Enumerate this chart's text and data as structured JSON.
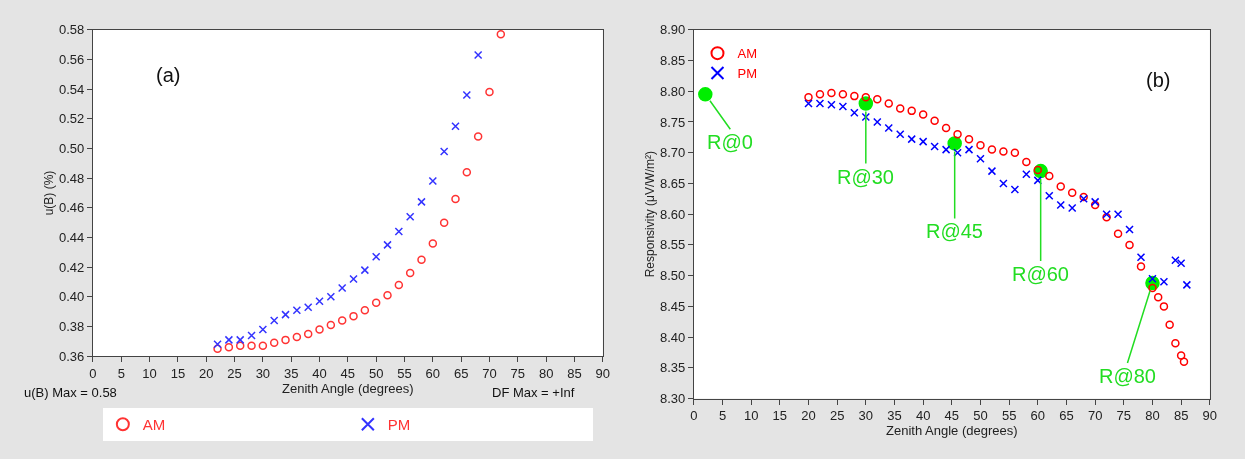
{
  "chart_data": [
    {
      "type": "scatter",
      "xlabel": "Zenith Angle (degrees)",
      "ylabel": "u(B) (%)",
      "annotations": [
        "(a)",
        "u(B) Max = 0.58",
        "DF Max = +Inf"
      ],
      "series": [
        {
          "name": "AM",
          "color": "#ff3333",
          "marker": "circle",
          "x": [
            22,
            24,
            26,
            28,
            30,
            32,
            34,
            36,
            38,
            40,
            42,
            44,
            46,
            48,
            50,
            52,
            54,
            56,
            58,
            60,
            62,
            64,
            66,
            68,
            70,
            72
          ],
          "values": [
            0.365,
            0.366,
            0.367,
            0.367,
            0.367,
            0.369,
            0.371,
            0.373,
            0.375,
            0.378,
            0.381,
            0.384,
            0.387,
            0.391,
            0.396,
            0.401,
            0.408,
            0.416,
            0.425,
            0.436,
            0.45,
            0.466,
            0.484,
            0.508,
            0.538,
            0.577
          ]
        },
        {
          "name": "PM",
          "color": "#3333ff",
          "marker": "cross",
          "x": [
            22,
            24,
            26,
            28,
            30,
            32,
            34,
            36,
            38,
            40,
            42,
            44,
            46,
            48,
            50,
            52,
            54,
            56,
            58,
            60,
            62,
            64,
            66,
            68
          ],
          "values": [
            0.368,
            0.371,
            0.371,
            0.374,
            0.378,
            0.384,
            0.388,
            0.391,
            0.393,
            0.397,
            0.4,
            0.406,
            0.412,
            0.418,
            0.427,
            0.435,
            0.444,
            0.454,
            0.464,
            0.478,
            0.498,
            0.515,
            0.536,
            0.563
          ]
        }
      ],
      "xlim": [
        0,
        90
      ],
      "xticks": [
        0,
        5,
        10,
        15,
        20,
        25,
        30,
        35,
        40,
        45,
        50,
        55,
        60,
        65,
        70,
        75,
        80,
        85,
        90
      ],
      "ylim": [
        0.36,
        0.58
      ],
      "yticks": [
        0.36,
        0.38,
        {
          "value": 0.4,
          "label": "0.40"
        },
        0.42,
        0.44,
        0.46,
        0.48,
        {
          "value": 0.5,
          "label": "0.50"
        },
        0.52,
        0.54,
        0.56,
        0.58
      ],
      "grid": false,
      "legend": "bottom"
    },
    {
      "type": "scatter",
      "xlabel": "Zenith Angle (degrees)",
      "ylabel": "Responsivity (μV/W/m²)",
      "annotations": [
        "(b)",
        {
          "text": "R@0",
          "x": 2,
          "y": 8.795
        },
        {
          "text": "R@30",
          "x": 30,
          "y": 8.78
        },
        {
          "text": "R@45",
          "x": 45.5,
          "y": 8.715
        },
        {
          "text": "R@60",
          "x": 60.5,
          "y": 8.67
        },
        {
          "text": "R@80",
          "x": 80,
          "y": 8.488
        }
      ],
      "series": [
        {
          "color": "#00ee00",
          "marker": "circle",
          "x": [
            2,
            30,
            45.5,
            60.5,
            80
          ],
          "values": [
            8.795,
            8.78,
            8.715,
            8.67,
            8.488
          ]
        },
        {
          "name": "AM",
          "color": "#ff0000",
          "marker": "circle",
          "x": [
            20,
            22,
            24,
            26,
            28,
            30,
            32,
            34,
            36,
            38,
            40,
            42,
            44,
            46,
            48,
            50,
            52,
            54,
            56,
            58,
            60,
            62,
            64,
            66,
            68,
            70,
            72,
            74,
            76,
            78,
            80,
            81,
            82,
            83,
            84,
            85,
            85.5
          ],
          "values": [
            8.79,
            8.795,
            8.797,
            8.795,
            8.792,
            8.79,
            8.787,
            8.78,
            8.772,
            8.768,
            8.762,
            8.752,
            8.74,
            8.73,
            8.722,
            8.712,
            8.705,
            8.702,
            8.7,
            8.685,
            8.672,
            8.662,
            8.645,
            8.635,
            8.628,
            8.615,
            8.595,
            8.568,
            8.55,
            8.515,
            8.48,
            8.465,
            8.45,
            8.42,
            8.39,
            8.37,
            8.36
          ]
        },
        {
          "name": "PM",
          "color": "#0000ff",
          "marker": "cross",
          "x": [
            20,
            22,
            24,
            26,
            28,
            30,
            32,
            34,
            36,
            38,
            40,
            42,
            44,
            46,
            48,
            50,
            52,
            54,
            56,
            58,
            60,
            62,
            64,
            66,
            68,
            70,
            72,
            74,
            76,
            78,
            80,
            82,
            84,
            85,
            86
          ],
          "values": [
            8.78,
            8.78,
            8.778,
            8.775,
            8.765,
            8.758,
            8.75,
            8.74,
            8.73,
            8.722,
            8.718,
            8.71,
            8.705,
            8.7,
            8.705,
            8.69,
            8.67,
            8.65,
            8.64,
            8.665,
            8.655,
            8.63,
            8.615,
            8.61,
            8.625,
            8.62,
            8.6,
            8.6,
            8.575,
            8.53,
            8.495,
            8.49,
            8.525,
            8.52,
            8.485
          ]
        }
      ],
      "xlim": [
        0,
        90
      ],
      "xticks": [
        0,
        5,
        10,
        15,
        20,
        25,
        30,
        35,
        40,
        45,
        50,
        55,
        60,
        65,
        70,
        75,
        80,
        85,
        90
      ],
      "ylim": [
        8.3,
        8.9
      ],
      "yticks": [
        {
          "value": 8.3,
          "label": "8.30"
        },
        8.35,
        {
          "value": 8.4,
          "label": "8.40"
        },
        8.45,
        {
          "value": 8.5,
          "label": "8.50"
        },
        8.55,
        {
          "value": 8.6,
          "label": "8.60"
        },
        8.65,
        {
          "value": 8.7,
          "label": "8.70"
        },
        8.75,
        {
          "value": 8.8,
          "label": "8.80"
        },
        8.85,
        {
          "value": 8.9,
          "label": "8.90"
        }
      ],
      "grid": false,
      "legend": "top left"
    }
  ]
}
